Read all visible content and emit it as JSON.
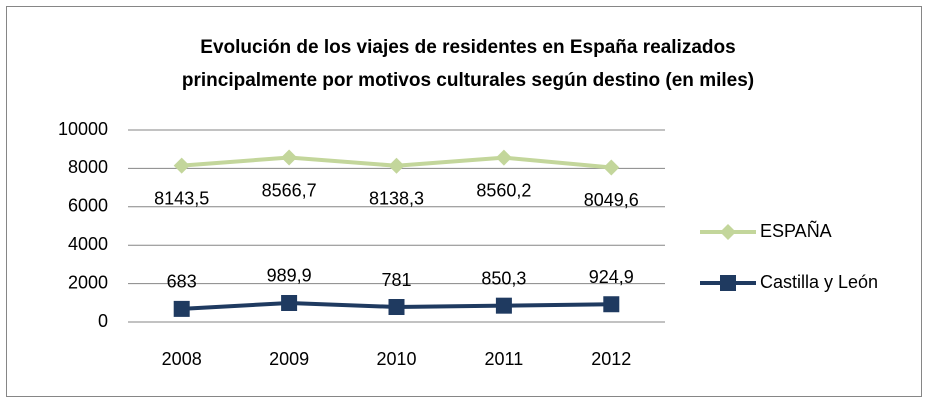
{
  "chart_data": {
    "type": "line",
    "title": [
      "Evolución de los viajes de residentes en España realizados",
      "principalmente por motivos culturales según destino (en miles)"
    ],
    "categories": [
      "2008",
      "2009",
      "2010",
      "2011",
      "2012"
    ],
    "series": [
      {
        "name": "ESPAÑA",
        "color": "#c3d69b",
        "marker": "diamond",
        "values": [
          8143.5,
          8566.7,
          8138.3,
          8560.2,
          8049.6
        ],
        "value_labels": [
          "8143,5",
          "8566,7",
          "8138,3",
          "8560,2",
          "8049,6"
        ]
      },
      {
        "name": "Castilla y León",
        "color": "#1f3a60",
        "marker": "square",
        "values": [
          683,
          989.9,
          781,
          850.3,
          924.9
        ],
        "value_labels": [
          "683",
          "989,9",
          "781",
          "850,3",
          "924,9"
        ]
      }
    ],
    "ylim": [
      0,
      10000
    ],
    "yticks": [
      0,
      2000,
      4000,
      6000,
      8000,
      10000
    ],
    "grid": true,
    "legend": "right"
  }
}
